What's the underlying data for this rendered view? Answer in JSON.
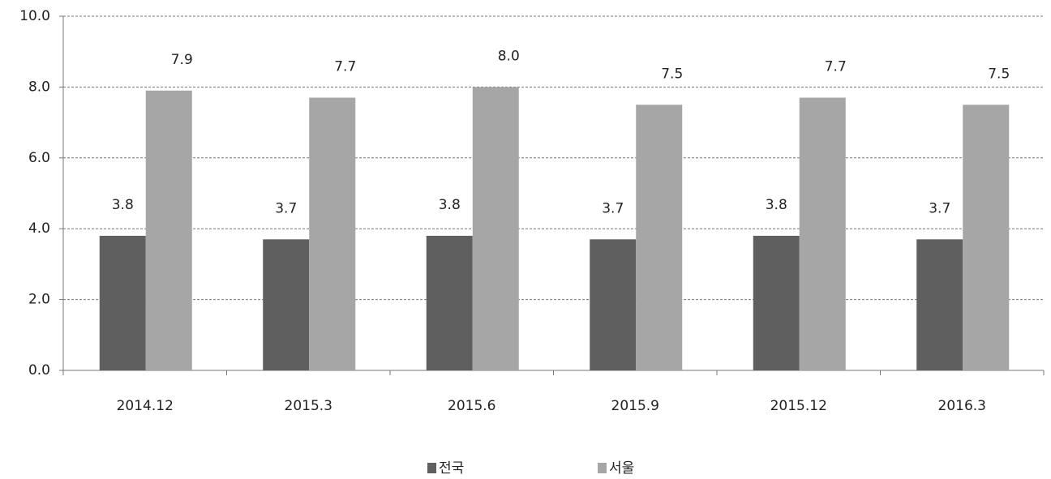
{
  "chart_data": {
    "type": "bar",
    "categories": [
      "2014.12",
      "2015.3",
      "2015.6",
      "2015.9",
      "2015.12",
      "2016.3"
    ],
    "series": [
      {
        "name": "전국",
        "color": "#5f5f5f",
        "values": [
          3.8,
          3.7,
          3.8,
          3.7,
          3.8,
          3.7
        ],
        "value_labels": [
          "3.8",
          "3.7",
          "3.8",
          "3.7",
          "3.8",
          "3.7"
        ]
      },
      {
        "name": "서울",
        "color": "#a6a6a6",
        "values": [
          7.9,
          7.7,
          8.0,
          7.5,
          7.7,
          7.5
        ],
        "value_labels": [
          "7.9",
          "7.7",
          "8.0",
          "7.5",
          "7.7",
          "7.5"
        ]
      }
    ],
    "ylim": [
      0,
      10
    ],
    "yticks": [
      {
        "value": 0,
        "label": "0.0"
      },
      {
        "value": 2,
        "label": "2.0"
      },
      {
        "value": 4,
        "label": "4.0"
      },
      {
        "value": 6,
        "label": "6.0"
      },
      {
        "value": 8,
        "label": "8.0"
      },
      {
        "value": 10,
        "label": "10.0"
      }
    ],
    "grid": true,
    "legend": "bottom"
  }
}
